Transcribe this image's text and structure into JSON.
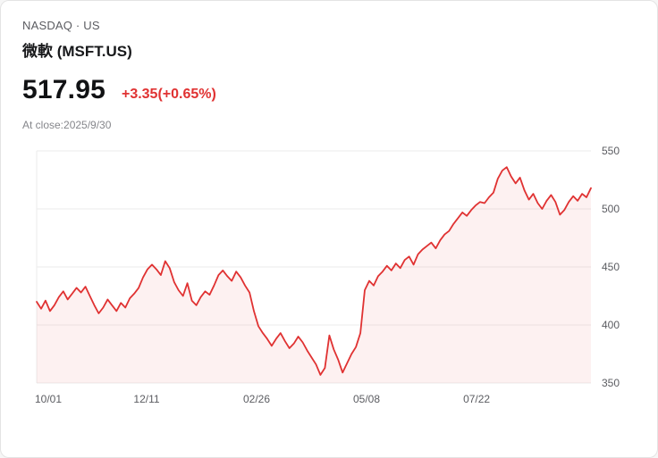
{
  "header": {
    "exchange_line": "NASDAQ · US",
    "title": "微軟 (MSFT.US)",
    "price": "517.95",
    "change": "+3.35(+0.65%)",
    "as_of": "At close:2025/9/30"
  },
  "colors": {
    "change_red": "#e03232",
    "line": "#e03232",
    "area_fill": "rgba(224,50,50,0.07)",
    "grid": "#ebebeb",
    "axis_text": "#5b5c61"
  },
  "chart_data": {
    "type": "line",
    "title": "MSFT.US price history 2024/10/01 - 2025/09/30",
    "xlabel": "",
    "ylabel": "",
    "ylim": [
      350,
      550
    ],
    "y_ticks": [
      350,
      400,
      450,
      500,
      550
    ],
    "x_tick_labels": [
      "10/01",
      "12/11",
      "02/26",
      "05/08",
      "07/22"
    ],
    "x_tick_positions": [
      0,
      50,
      100,
      150,
      200
    ],
    "x_total_days": 252,
    "grid": "horizontal",
    "legend": "none",
    "area": true,
    "line_color": "#e03232",
    "values": [
      420,
      414,
      421,
      412,
      417,
      424,
      429,
      422,
      427,
      432,
      428,
      433,
      425,
      417,
      410,
      415,
      422,
      417,
      412,
      419,
      415,
      423,
      427,
      432,
      441,
      448,
      452,
      448,
      443,
      455,
      449,
      437,
      430,
      425,
      436,
      421,
      417,
      424,
      429,
      426,
      434,
      443,
      447,
      442,
      438,
      446,
      441,
      434,
      428,
      412,
      399,
      393,
      388,
      382,
      388,
      393,
      386,
      380,
      384,
      390,
      385,
      378,
      372,
      366,
      357,
      363,
      391,
      379,
      370,
      359,
      367,
      375,
      381,
      393,
      430,
      438,
      434,
      442,
      446,
      451,
      447,
      453,
      449,
      456,
      459,
      452,
      461,
      465,
      468,
      471,
      466,
      473,
      478,
      481,
      487,
      492,
      497,
      494,
      499,
      503,
      506,
      505,
      510,
      514,
      526,
      533,
      536,
      528,
      522,
      527,
      516,
      508,
      513,
      505,
      500,
      507,
      512,
      506,
      495,
      499,
      506,
      511,
      507,
      513,
      510,
      517.95
    ]
  }
}
